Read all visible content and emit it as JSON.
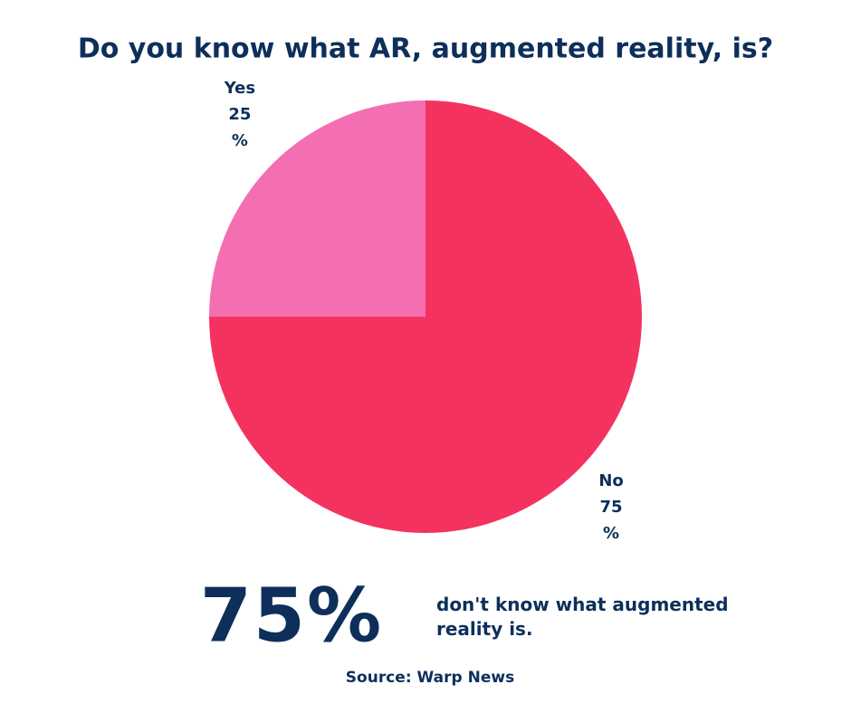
{
  "chart_data": {
    "type": "pie",
    "title": "Do you know what AR, augmented reality, is?",
    "categories": [
      "Yes",
      "No"
    ],
    "values": [
      25,
      75
    ],
    "value_labels": [
      "25%",
      "75%"
    ],
    "colors": [
      "#f46fb2",
      "#f43260"
    ]
  },
  "highlight": {
    "figure": "75%",
    "text": "don't know what augmented reality is."
  },
  "source": "Source: Warp News"
}
